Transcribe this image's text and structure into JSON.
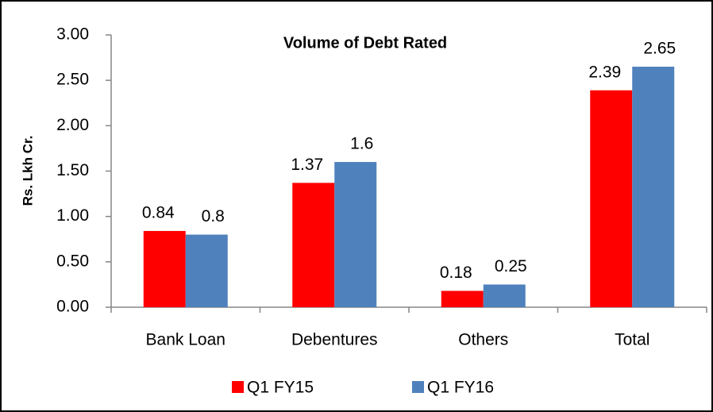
{
  "chart_data": {
    "type": "bar",
    "title": "Volume of Debt Rated",
    "y_label": "Rs. Lkh Cr.",
    "categories": [
      "Bank Loan",
      "Debentures",
      "Others",
      "Total"
    ],
    "series": [
      {
        "name": "Q1 FY15",
        "color": "#ff0000",
        "values": [
          0.84,
          1.37,
          0.18,
          2.39
        ]
      },
      {
        "name": "Q1 FY16",
        "color": "#4f81bd",
        "values": [
          0.8,
          1.6,
          0.25,
          2.65
        ]
      }
    ],
    "ylim": [
      0,
      3
    ],
    "yticks": [
      {
        "value": 0,
        "label": "0.00"
      },
      {
        "value": 0.5,
        "label": "0.50"
      },
      {
        "value": 1,
        "label": "1.00"
      },
      {
        "value": 1.5,
        "label": "1.50"
      },
      {
        "value": 2,
        "label": "2.00"
      },
      {
        "value": 2.5,
        "label": "2.50"
      },
      {
        "value": 3,
        "label": "3.00"
      }
    ],
    "legend": "bottom"
  }
}
